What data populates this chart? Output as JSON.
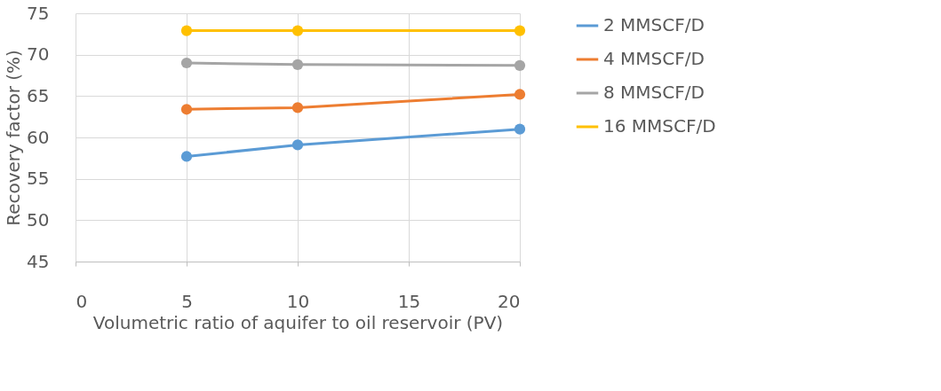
{
  "chart_data": {
    "type": "line",
    "xlabel": "Volumetric ratio of aquifer to oil reservoir (PV)",
    "ylabel": "Recovery factor (%)",
    "x": [
      5,
      10,
      20
    ],
    "series": [
      {
        "name": "2 MMSCF/D",
        "color": "#5b9bd5",
        "values": [
          57.7,
          59.1,
          61.0
        ]
      },
      {
        "name": "4 MMSCF/D",
        "color": "#ed7d31",
        "values": [
          63.4,
          63.6,
          65.2
        ]
      },
      {
        "name": "8 MMSCF/D",
        "color": "#a5a5a5",
        "values": [
          69.0,
          68.8,
          68.7
        ]
      },
      {
        "name": "16 MMSCF/D",
        "color": "#ffc000",
        "values": [
          72.9,
          72.9,
          72.9
        ]
      }
    ],
    "xlim": [
      0,
      20
    ],
    "xticks": [
      0,
      5,
      10,
      15,
      20
    ],
    "ylim": [
      45,
      75
    ],
    "yticks": [
      45,
      50,
      55,
      60,
      65,
      70,
      75
    ],
    "grid": true,
    "legend": "right",
    "marker": "circle",
    "line_style": "solid"
  }
}
